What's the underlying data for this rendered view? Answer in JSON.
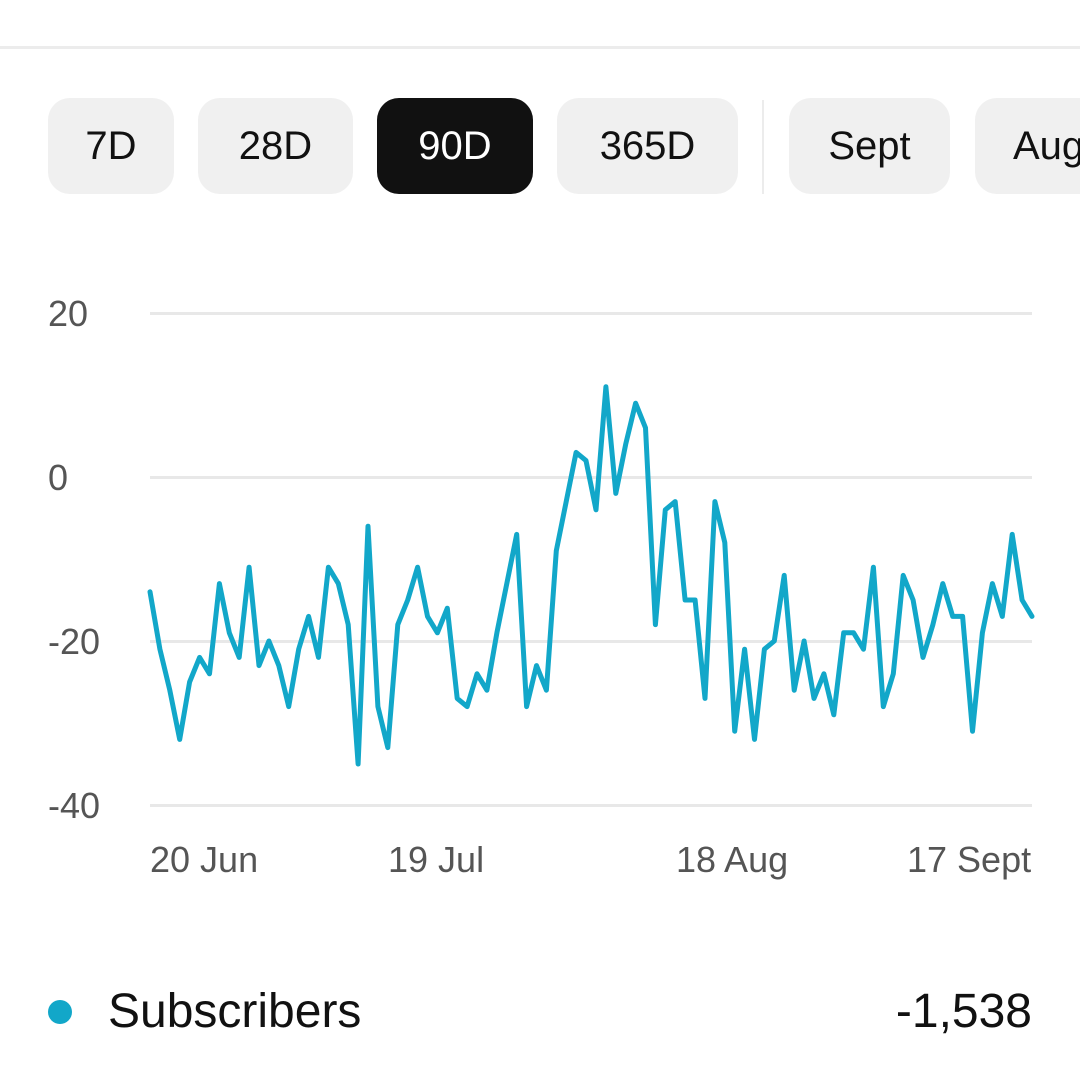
{
  "range_chips": [
    {
      "label": "7D",
      "active": false
    },
    {
      "label": "28D",
      "active": false
    },
    {
      "label": "90D",
      "active": true
    },
    {
      "label": "365D",
      "active": false
    },
    {
      "label": "Sept",
      "active": false
    },
    {
      "label": "Aug",
      "active": false
    }
  ],
  "colors": {
    "series": "#12a7c9",
    "chip_active_bg": "#111111",
    "chip_bg": "#f0f0f0"
  },
  "chart_data": {
    "type": "line",
    "ylim": [
      -40,
      20
    ],
    "yticks": [
      "20",
      "0",
      "-20",
      "-40"
    ],
    "ytick_values": [
      20,
      0,
      -20,
      -40
    ],
    "xtick_labels": [
      "20 Jun",
      "19 Jul",
      "18 Aug",
      "17 Sept"
    ],
    "grid": true,
    "series": [
      {
        "name": "Subscribers",
        "values": [
          -14,
          -21,
          -26,
          -32,
          -25,
          -22,
          -24,
          -13,
          -19,
          -22,
          -11,
          -23,
          -20,
          -23,
          -28,
          -21,
          -17,
          -22,
          -11,
          -13,
          -18,
          -35,
          -6,
          -28,
          -33,
          -18,
          -15,
          -11,
          -17,
          -19,
          -16,
          -27,
          -28,
          -24,
          -26,
          -19,
          -13,
          -7,
          -28,
          -23,
          -26,
          -9,
          -3,
          3,
          2,
          -4,
          11,
          -2,
          4,
          9,
          6,
          -18,
          -4,
          -3,
          -15,
          -15,
          -27,
          -3,
          -8,
          -31,
          -21,
          -32,
          -21,
          -20,
          -12,
          -26,
          -20,
          -27,
          -24,
          -29,
          -19,
          -19,
          -21,
          -11,
          -28,
          -24,
          -12,
          -15,
          -22,
          -18,
          -13,
          -17,
          -17,
          -31,
          -19,
          -13,
          -17,
          -7,
          -15,
          -17
        ]
      }
    ]
  },
  "legend": {
    "label": "Subscribers",
    "total": "-1,538"
  }
}
